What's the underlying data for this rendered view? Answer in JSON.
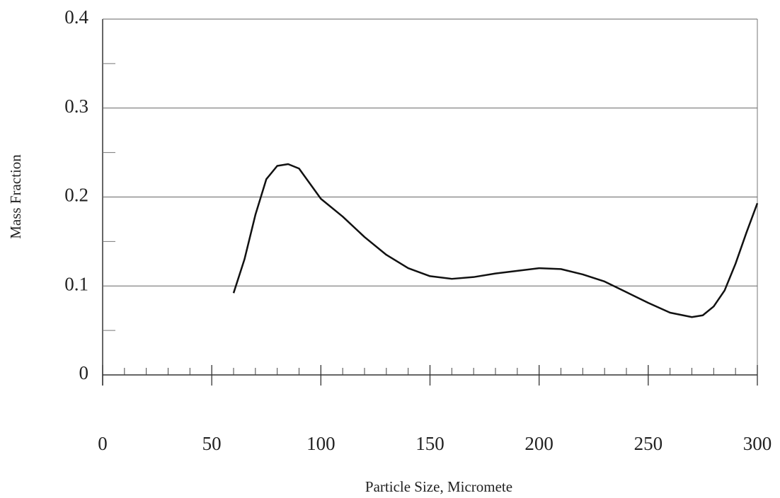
{
  "chart_data": {
    "type": "line",
    "x_label": "Particle Size, Micromete",
    "y_label": "Mass Fraction",
    "x": [
      60,
      65,
      70,
      75,
      80,
      85,
      90,
      95,
      100,
      110,
      120,
      130,
      140,
      150,
      160,
      170,
      180,
      190,
      200,
      210,
      220,
      230,
      240,
      250,
      260,
      270,
      275,
      280,
      285,
      290,
      295,
      300
    ],
    "series": [
      {
        "color": "#111111",
        "values": [
          0.092,
          0.13,
          0.18,
          0.22,
          0.235,
          0.237,
          0.232,
          0.215,
          0.198,
          0.178,
          0.155,
          0.135,
          0.12,
          0.111,
          0.108,
          0.11,
          0.114,
          0.117,
          0.12,
          0.119,
          0.113,
          0.105,
          0.093,
          0.081,
          0.07,
          0.065,
          0.067,
          0.077,
          0.095,
          0.125,
          0.16,
          0.193
        ]
      }
    ],
    "xlim": [
      0,
      300
    ],
    "xticks": [
      0,
      50,
      100,
      150,
      200,
      250,
      300
    ],
    "ylim": [
      0,
      0.4
    ],
    "yticks": [
      0,
      0.1,
      0.2,
      0.3,
      0.4
    ],
    "grid": true
  }
}
